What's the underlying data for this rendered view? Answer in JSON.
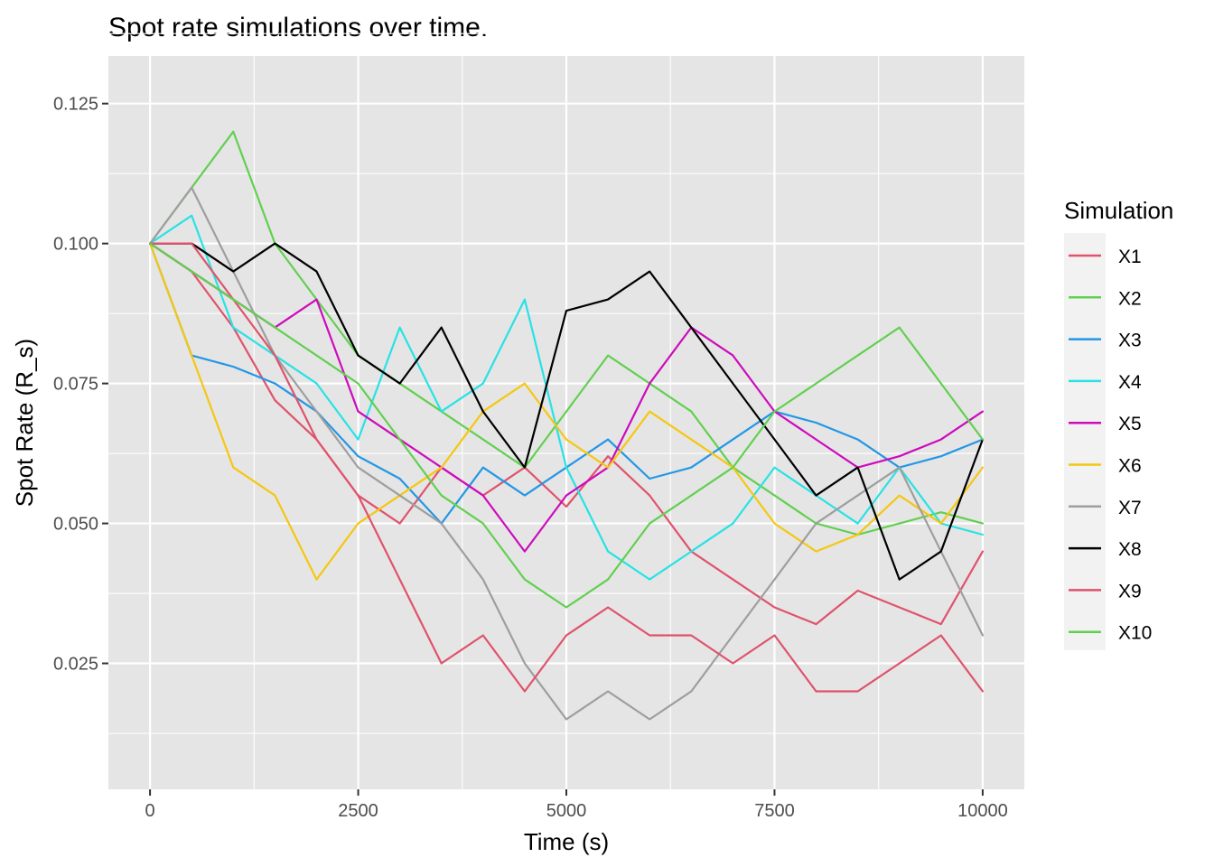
{
  "chart_data": {
    "type": "line",
    "title": "Spot rate simulations over time.",
    "xlabel": "Time (s)",
    "ylabel": "Spot Rate (R_s)",
    "xlim": [
      -500,
      10500
    ],
    "ylim": [
      0.0025,
      0.1335
    ],
    "x_ticks": [
      0,
      2500,
      5000,
      7500,
      10000
    ],
    "x_tick_labels": [
      "0",
      "2500",
      "5000",
      "7500",
      "10000"
    ],
    "y_ticks": [
      0.025,
      0.05,
      0.075,
      0.1,
      0.125
    ],
    "y_tick_labels": [
      "0.025",
      "0.050",
      "0.075",
      "0.100",
      "0.125"
    ],
    "grid": true,
    "panel_color": "#e5e5e5",
    "legend": {
      "title": "Simulation",
      "position": "right"
    },
    "series": [
      {
        "name": "X1",
        "color": "#df536b",
        "x": [
          0,
          500,
          1000,
          1500,
          2000,
          2500,
          3000,
          3500,
          4000,
          4500,
          5000,
          5500,
          6000,
          6500,
          7000,
          7500,
          8000,
          8500,
          9000,
          9500,
          10000
        ],
        "y": [
          0.1,
          0.095,
          0.085,
          0.072,
          0.065,
          0.055,
          0.05,
          0.06,
          0.055,
          0.06,
          0.053,
          0.062,
          0.055,
          0.045,
          0.04,
          0.035,
          0.032,
          0.038,
          0.035,
          0.032,
          0.045
        ]
      },
      {
        "name": "X2",
        "color": "#61d04f",
        "x": [
          0,
          500,
          1000,
          1500,
          2000,
          2500,
          3000,
          3500,
          4000,
          4500,
          5000,
          5500,
          6000,
          6500,
          7000,
          7500,
          8000,
          8500,
          9000,
          9500,
          10000
        ],
        "y": [
          0.1,
          0.11,
          0.12,
          0.1,
          0.09,
          0.08,
          0.075,
          0.07,
          0.065,
          0.06,
          0.07,
          0.08,
          0.075,
          0.07,
          0.06,
          0.055,
          0.05,
          0.048,
          0.05,
          0.052,
          0.05
        ]
      },
      {
        "name": "X3",
        "color": "#2297e6",
        "x": [
          0,
          500,
          1000,
          1500,
          2000,
          2500,
          3000,
          3500,
          4000,
          4500,
          5000,
          5500,
          6000,
          6500,
          7000,
          7500,
          8000,
          8500,
          9000,
          9500,
          10000
        ],
        "y": [
          0.1,
          0.08,
          0.078,
          0.075,
          0.07,
          0.062,
          0.058,
          0.05,
          0.06,
          0.055,
          0.06,
          0.065,
          0.058,
          0.06,
          0.065,
          0.07,
          0.068,
          0.065,
          0.06,
          0.062,
          0.065
        ]
      },
      {
        "name": "X4",
        "color": "#28e2e5",
        "x": [
          0,
          500,
          1000,
          1500,
          2000,
          2500,
          3000,
          3500,
          4000,
          4500,
          5000,
          5500,
          6000,
          6500,
          7000,
          7500,
          8000,
          8500,
          9000,
          9500,
          10000
        ],
        "y": [
          0.1,
          0.105,
          0.085,
          0.08,
          0.075,
          0.065,
          0.085,
          0.07,
          0.075,
          0.09,
          0.06,
          0.045,
          0.04,
          0.045,
          0.05,
          0.06,
          0.055,
          0.05,
          0.06,
          0.05,
          0.048
        ]
      },
      {
        "name": "X5",
        "color": "#cd0bbc",
        "x": [
          0,
          500,
          1000,
          1500,
          2000,
          2500,
          3000,
          3500,
          4000,
          4500,
          5000,
          5500,
          6000,
          6500,
          7000,
          7500,
          8000,
          8500,
          9000,
          9500,
          10000
        ],
        "y": [
          0.1,
          0.095,
          0.09,
          0.085,
          0.09,
          0.07,
          0.065,
          0.06,
          0.055,
          0.045,
          0.055,
          0.06,
          0.075,
          0.085,
          0.08,
          0.07,
          0.065,
          0.06,
          0.062,
          0.065,
          0.07
        ]
      },
      {
        "name": "X6",
        "color": "#f5c710",
        "x": [
          0,
          500,
          1000,
          1500,
          2000,
          2500,
          3000,
          3500,
          4000,
          4500,
          5000,
          5500,
          6000,
          6500,
          7000,
          7500,
          8000,
          8500,
          9000,
          9500,
          10000
        ],
        "y": [
          0.1,
          0.08,
          0.06,
          0.055,
          0.04,
          0.05,
          0.055,
          0.06,
          0.07,
          0.075,
          0.065,
          0.06,
          0.07,
          0.065,
          0.06,
          0.05,
          0.045,
          0.048,
          0.055,
          0.05,
          0.06
        ]
      },
      {
        "name": "X7",
        "color": "#9e9e9e",
        "x": [
          0,
          500,
          1000,
          1500,
          2000,
          2500,
          3000,
          3500,
          4000,
          4500,
          5000,
          5500,
          6000,
          6500,
          7000,
          7500,
          8000,
          8500,
          9000,
          9500,
          10000
        ],
        "y": [
          0.1,
          0.11,
          0.095,
          0.08,
          0.07,
          0.06,
          0.055,
          0.05,
          0.04,
          0.025,
          0.015,
          0.02,
          0.015,
          0.02,
          0.03,
          0.04,
          0.05,
          0.055,
          0.06,
          0.045,
          0.03
        ]
      },
      {
        "name": "X8",
        "color": "#000000",
        "x": [
          0,
          500,
          1000,
          1500,
          2000,
          2500,
          3000,
          3500,
          4000,
          4500,
          5000,
          5500,
          6000,
          6500,
          7000,
          7500,
          8000,
          8500,
          9000,
          9500,
          10000
        ],
        "y": [
          0.1,
          0.1,
          0.095,
          0.1,
          0.095,
          0.08,
          0.075,
          0.085,
          0.07,
          0.06,
          0.088,
          0.09,
          0.095,
          0.085,
          0.075,
          0.065,
          0.055,
          0.06,
          0.04,
          0.045,
          0.065
        ]
      },
      {
        "name": "X9",
        "color": "#df536b",
        "x": [
          0,
          500,
          1000,
          1500,
          2000,
          2500,
          3000,
          3500,
          4000,
          4500,
          5000,
          5500,
          6000,
          6500,
          7000,
          7500,
          8000,
          8500,
          9000,
          9500,
          10000
        ],
        "y": [
          0.1,
          0.1,
          0.09,
          0.08,
          0.065,
          0.055,
          0.04,
          0.025,
          0.03,
          0.02,
          0.03,
          0.035,
          0.03,
          0.03,
          0.025,
          0.03,
          0.02,
          0.02,
          0.025,
          0.03,
          0.02
        ]
      },
      {
        "name": "X10",
        "color": "#61d04f",
        "x": [
          0,
          500,
          1000,
          1500,
          2000,
          2500,
          3000,
          3500,
          4000,
          4500,
          5000,
          5500,
          6000,
          6500,
          7000,
          7500,
          8000,
          8500,
          9000,
          9500,
          10000
        ],
        "y": [
          0.1,
          0.095,
          0.09,
          0.085,
          0.08,
          0.075,
          0.065,
          0.055,
          0.05,
          0.04,
          0.035,
          0.04,
          0.05,
          0.055,
          0.06,
          0.07,
          0.075,
          0.08,
          0.085,
          0.075,
          0.065
        ]
      }
    ]
  }
}
